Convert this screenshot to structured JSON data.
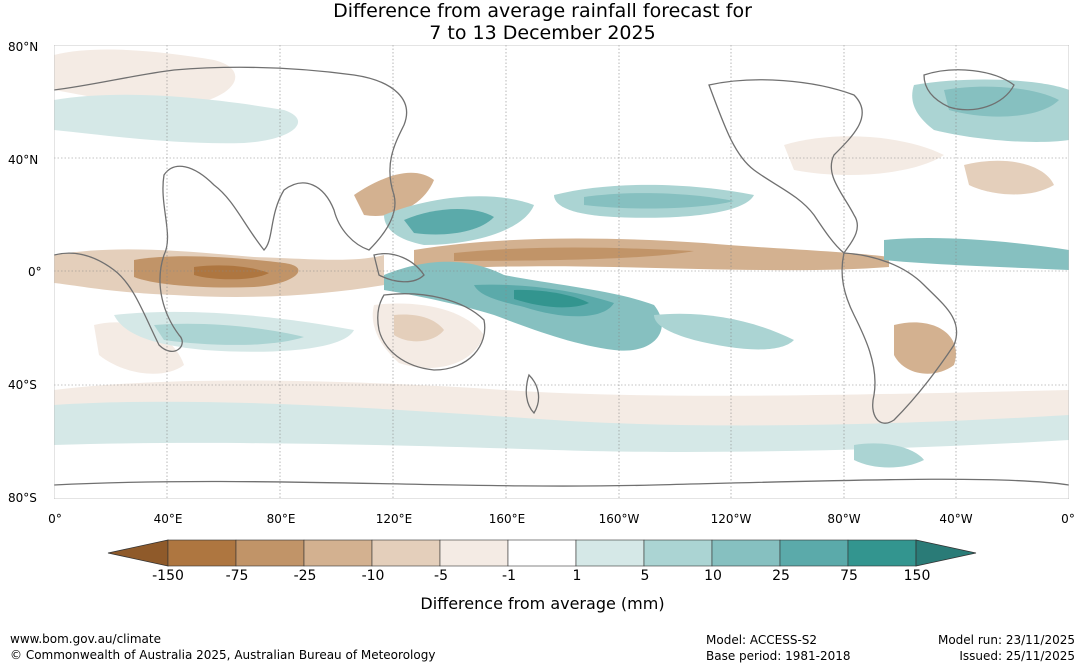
{
  "title": {
    "line1": "Difference from average rainfall forecast for",
    "line2": "7 to 13 December 2025"
  },
  "map": {
    "lat_labels": [
      "80°N",
      "40°N",
      "0°",
      "40°S",
      "80°S"
    ],
    "lon_labels": [
      "0°",
      "40°E",
      "80°E",
      "120°E",
      "160°E",
      "160°W",
      "120°W",
      "80°W",
      "40°W",
      "0°"
    ]
  },
  "colorbar": {
    "ticks": [
      "-150",
      "-75",
      "-25",
      "-10",
      "-5",
      "-1",
      "1",
      "5",
      "10",
      "25",
      "75",
      "150"
    ],
    "colors": [
      "#8f5a2a",
      "#ae7640",
      "#c19468",
      "#d3b190",
      "#e4cfbb",
      "#f4ebe4",
      "#ffffff",
      "#d5e8e7",
      "#abd4d3",
      "#86c0c0",
      "#5baaaa",
      "#33958f",
      "#2a7b77"
    ],
    "label": "Difference from average (mm)"
  },
  "footer": {
    "url": "www.bom.gov.au/climate",
    "copyright": "© Commonwealth of Australia 2025, Australian Bureau of Meteorology",
    "model": "Model: ACCESS-S2",
    "base_period": "Base period: 1981-2018",
    "model_run": "Model run: 23/11/2025",
    "issued": "Issued: 25/11/2025"
  }
}
